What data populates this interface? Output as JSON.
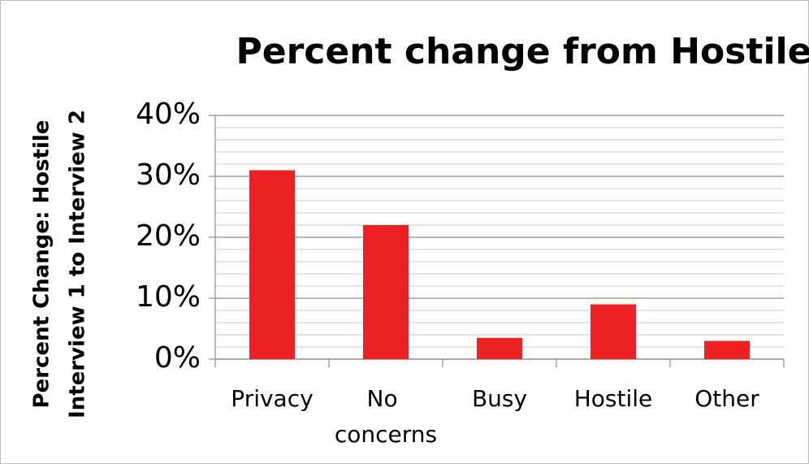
{
  "chart_data": {
    "type": "bar",
    "title": "Percent change from Hostile",
    "y_label": [
      "Percent Change: Hostile",
      "Interview 1 to Interview 2"
    ],
    "categories": [
      "Privacy",
      "No concerns",
      "Busy",
      "Hostile",
      "Other"
    ],
    "values": [
      31,
      22,
      3.5,
      9,
      3
    ],
    "color": "#ed2024",
    "ylim": [
      0,
      40
    ],
    "yticks": [
      {
        "value": 0,
        "label": "0%"
      },
      {
        "value": 10,
        "label": "10%"
      },
      {
        "value": 20,
        "label": "20%"
      },
      {
        "value": 30,
        "label": "30%"
      },
      {
        "value": 40,
        "label": "40%"
      }
    ],
    "yminorticks": [
      2,
      4,
      6,
      8,
      12,
      14,
      16,
      18,
      22,
      24,
      26,
      28,
      32,
      34,
      36,
      38
    ],
    "grid": true
  }
}
